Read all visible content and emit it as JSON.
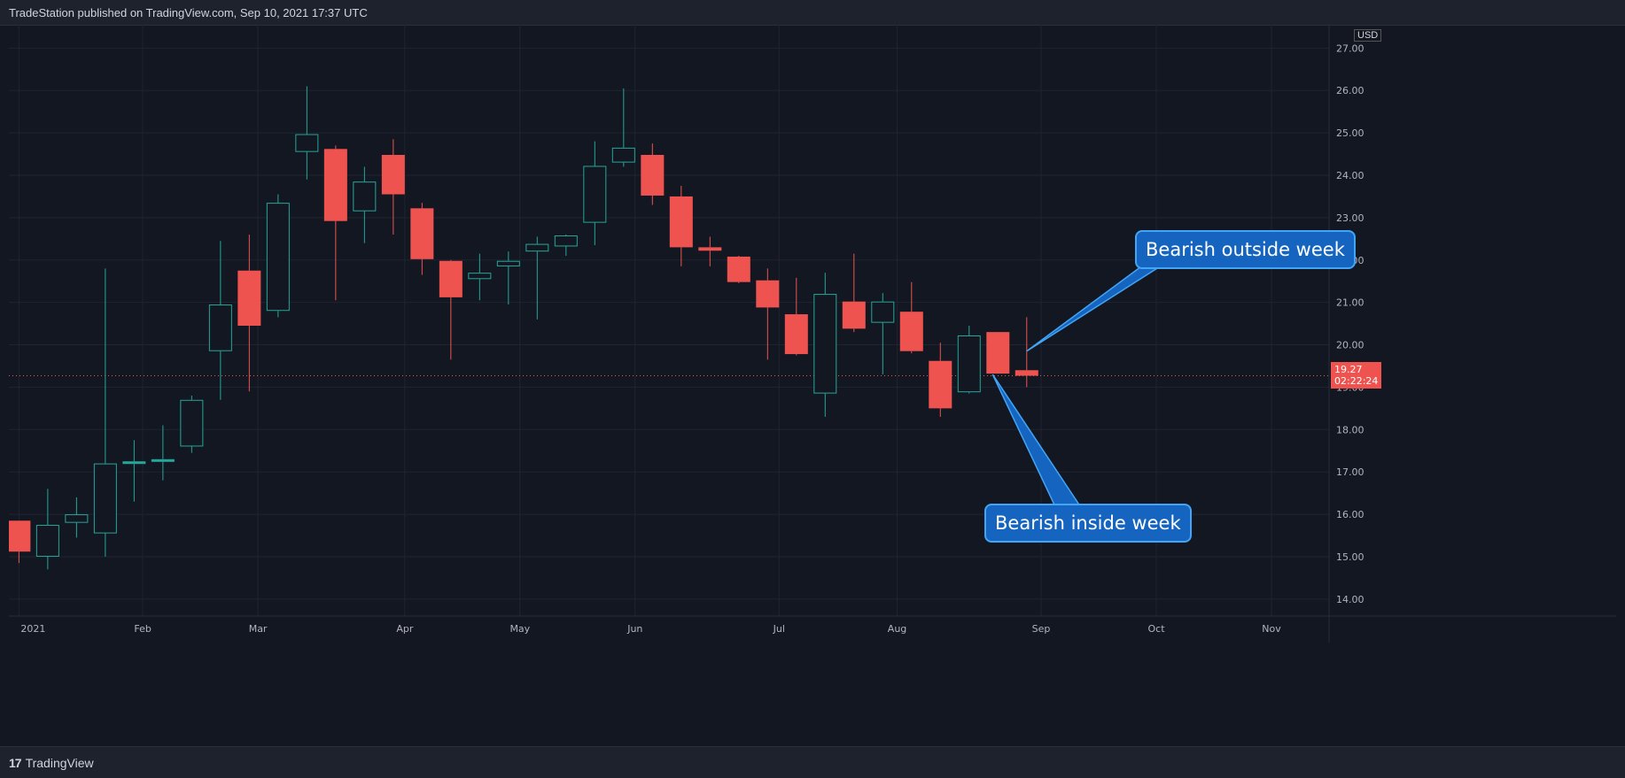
{
  "header": {
    "publisher_text": "TradeStation published on TradingView.com, Sep 10, 2021 17:37 UTC"
  },
  "footer": {
    "logo_text": "TradingView",
    "logo_icon": "tradingview-logo-icon"
  },
  "price_axis": {
    "currency": "USD",
    "current_price": "19.27",
    "countdown": "02:22:24"
  },
  "colors": {
    "background": "#131722",
    "up": "#26a69a",
    "down": "#ef5350",
    "grid": "#1f2431",
    "callout_bg": "#1565c0",
    "callout_border": "#42a5f5"
  },
  "annotations": [
    {
      "text": "Bearish outside week",
      "candle_index": 35,
      "price": 19.85
    },
    {
      "text": "Bearish inside week",
      "candle_index": 34,
      "price": 19.3
    }
  ],
  "chart_data": {
    "type": "candlestick",
    "interval": "weekly",
    "x_tick_labels": [
      "2021",
      "Feb",
      "Mar",
      "Apr",
      "May",
      "Jun",
      "Jul",
      "Aug",
      "Sep",
      "Oct",
      "Nov"
    ],
    "x_tick_weeks": [
      0,
      4.3,
      8.3,
      13.4,
      17.4,
      21.4,
      26.4,
      30.5,
      35.5,
      39.5,
      43.5
    ],
    "y_tick_labels": [
      "14.00",
      "15.00",
      "16.00",
      "17.00",
      "18.00",
      "19.00",
      "20.00",
      "21.00",
      "22.00",
      "23.00",
      "24.00",
      "25.00",
      "26.00",
      "27.00"
    ],
    "ylim": [
      13.6,
      27.55
    ],
    "xlim_weeks": [
      -0.35,
      45.5
    ],
    "current_price": 19.27,
    "grid": true,
    "candles": [
      {
        "week": "2021-01-01",
        "open": 15.85,
        "high": 15.85,
        "low": 14.85,
        "close": 15.12
      },
      {
        "week": "2021-01-08",
        "open": 15.0,
        "high": 16.6,
        "low": 14.7,
        "close": 15.75
      },
      {
        "week": "2021-01-15",
        "open": 15.8,
        "high": 16.4,
        "low": 15.45,
        "close": 16.0
      },
      {
        "week": "2021-01-22",
        "open": 15.55,
        "high": 21.8,
        "low": 15.0,
        "close": 17.2
      },
      {
        "week": "2021-01-29",
        "open": 17.2,
        "high": 17.75,
        "low": 16.3,
        "close": 17.25
      },
      {
        "week": "2021-02-05",
        "open": 17.25,
        "high": 18.1,
        "low": 16.8,
        "close": 17.3
      },
      {
        "week": "2021-02-12",
        "open": 17.6,
        "high": 18.8,
        "low": 17.45,
        "close": 18.7
      },
      {
        "week": "2021-02-19",
        "open": 19.85,
        "high": 22.45,
        "low": 18.7,
        "close": 20.95
      },
      {
        "week": "2021-02-26",
        "open": 21.75,
        "high": 22.6,
        "low": 18.9,
        "close": 20.45
      },
      {
        "week": "2021-03-05",
        "open": 20.8,
        "high": 23.55,
        "low": 20.65,
        "close": 23.35
      },
      {
        "week": "2021-03-12",
        "open": 24.55,
        "high": 26.1,
        "low": 23.9,
        "close": 24.97
      },
      {
        "week": "2021-03-19",
        "open": 24.62,
        "high": 24.7,
        "low": 21.05,
        "close": 22.92
      },
      {
        "week": "2021-03-26",
        "open": 23.15,
        "high": 24.2,
        "low": 22.4,
        "close": 23.85
      },
      {
        "week": "2021-04-02",
        "open": 24.48,
        "high": 24.85,
        "low": 22.6,
        "close": 23.55
      },
      {
        "week": "2021-04-09",
        "open": 23.22,
        "high": 23.35,
        "low": 21.65,
        "close": 22.02
      },
      {
        "week": "2021-04-16",
        "open": 21.98,
        "high": 22.0,
        "low": 19.65,
        "close": 21.12
      },
      {
        "week": "2021-04-23",
        "open": 21.55,
        "high": 22.15,
        "low": 21.05,
        "close": 21.7
      },
      {
        "week": "2021-04-30",
        "open": 21.85,
        "high": 22.2,
        "low": 20.95,
        "close": 21.98
      },
      {
        "week": "2021-05-07",
        "open": 22.2,
        "high": 22.55,
        "low": 20.6,
        "close": 22.38
      },
      {
        "week": "2021-05-14",
        "open": 22.32,
        "high": 22.6,
        "low": 22.1,
        "close": 22.58
      },
      {
        "week": "2021-05-21",
        "open": 22.88,
        "high": 24.8,
        "low": 22.35,
        "close": 24.22
      },
      {
        "week": "2021-05-28",
        "open": 24.3,
        "high": 26.05,
        "low": 24.2,
        "close": 24.65
      },
      {
        "week": "2021-06-04",
        "open": 24.48,
        "high": 24.75,
        "low": 23.3,
        "close": 23.52
      },
      {
        "week": "2021-06-11",
        "open": 23.5,
        "high": 23.75,
        "low": 21.85,
        "close": 22.3
      },
      {
        "week": "2021-06-18",
        "open": 22.3,
        "high": 22.55,
        "low": 21.85,
        "close": 22.22
      },
      {
        "week": "2021-06-25",
        "open": 22.08,
        "high": 22.1,
        "low": 21.45,
        "close": 21.48
      },
      {
        "week": "2021-07-02",
        "open": 21.52,
        "high": 21.8,
        "low": 19.65,
        "close": 20.88
      },
      {
        "week": "2021-07-09",
        "open": 20.72,
        "high": 21.58,
        "low": 19.75,
        "close": 19.78
      },
      {
        "week": "2021-07-16",
        "open": 18.85,
        "high": 21.7,
        "low": 18.3,
        "close": 21.2
      },
      {
        "week": "2021-07-23",
        "open": 21.02,
        "high": 22.15,
        "low": 20.3,
        "close": 20.38
      },
      {
        "week": "2021-07-30",
        "open": 20.52,
        "high": 21.22,
        "low": 19.3,
        "close": 21.02
      },
      {
        "week": "2021-08-06",
        "open": 20.78,
        "high": 21.48,
        "low": 19.8,
        "close": 19.85
      },
      {
        "week": "2021-08-13",
        "open": 19.62,
        "high": 20.05,
        "low": 18.3,
        "close": 18.5
      },
      {
        "week": "2021-08-20",
        "open": 18.88,
        "high": 20.45,
        "low": 18.85,
        "close": 20.22
      },
      {
        "week": "2021-08-27",
        "open": 20.3,
        "high": 20.3,
        "low": 19.32,
        "close": 19.32
      },
      {
        "week": "2021-09-03",
        "open": 19.4,
        "high": 20.65,
        "low": 19.0,
        "close": 19.27
      }
    ]
  }
}
